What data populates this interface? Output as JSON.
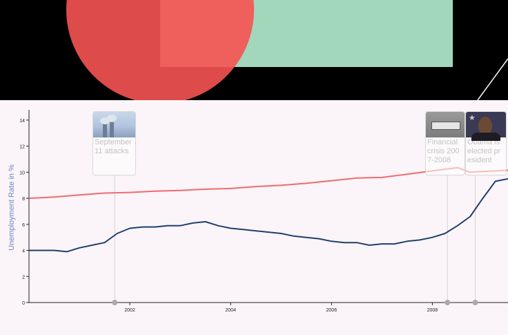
{
  "chart_data": {
    "type": "line",
    "ylabel": "Unemployment Rate in %",
    "xlabel": "",
    "ylim": [
      0,
      15
    ],
    "xlim": [
      2000.0,
      2009.5
    ],
    "yticks": [
      0,
      2,
      4,
      6,
      8,
      10,
      12,
      14
    ],
    "xticks": [
      2002,
      2004,
      2006,
      2008
    ],
    "series": [
      {
        "name": "",
        "color": "#1f3f6e",
        "x": [
          2000.0,
          2000.25,
          2000.5,
          2000.75,
          2001.0,
          2001.25,
          2001.5,
          2001.75,
          2002.0,
          2002.25,
          2002.5,
          2002.75,
          2003.0,
          2003.25,
          2003.5,
          2003.75,
          2004.0,
          2004.25,
          2004.5,
          2004.75,
          2005.0,
          2005.25,
          2005.5,
          2005.75,
          2006.0,
          2006.25,
          2006.5,
          2006.75,
          2007.0,
          2007.25,
          2007.5,
          2007.75,
          2008.0,
          2008.25,
          2008.5,
          2008.75,
          2009.0,
          2009.25,
          2009.5
        ],
        "values": [
          4.0,
          4.0,
          4.0,
          3.9,
          4.2,
          4.4,
          4.6,
          5.3,
          5.7,
          5.8,
          5.8,
          5.9,
          5.9,
          6.1,
          6.2,
          5.9,
          5.7,
          5.6,
          5.5,
          5.4,
          5.3,
          5.1,
          5.0,
          4.9,
          4.7,
          4.6,
          4.6,
          4.4,
          4.5,
          4.5,
          4.7,
          4.8,
          5.0,
          5.3,
          5.9,
          6.6,
          8.0,
          9.3,
          9.5
        ]
      },
      {
        "name": "",
        "color": "#ef6b6b",
        "x": [
          2000.0,
          2000.5,
          2001.0,
          2001.5,
          2002.0,
          2002.5,
          2003.0,
          2003.5,
          2004.0,
          2004.5,
          2005.0,
          2005.5,
          2006.0,
          2006.5,
          2007.0,
          2007.5,
          2008.0,
          2008.5,
          2008.75,
          2009.0,
          2009.5
        ],
        "values": [
          8.0,
          8.1,
          8.25,
          8.4,
          8.45,
          8.55,
          8.6,
          8.7,
          8.75,
          8.9,
          9.0,
          9.15,
          9.35,
          9.55,
          9.6,
          9.85,
          10.1,
          10.35,
          10.0,
          10.05,
          10.15
        ]
      }
    ],
    "annotations": [
      {
        "id": "sept",
        "x": 2001.7,
        "title": "September 11 attacks",
        "image": "twin-towers-photo"
      },
      {
        "id": "fin",
        "x": 2008.3,
        "title": "Financial crisis 2007-2008",
        "image": "lehman-brothers-sign-photo"
      },
      {
        "id": "obama",
        "x": 2008.85,
        "title": "Obama is elected president",
        "image": "obama-portrait-photo"
      }
    ]
  }
}
